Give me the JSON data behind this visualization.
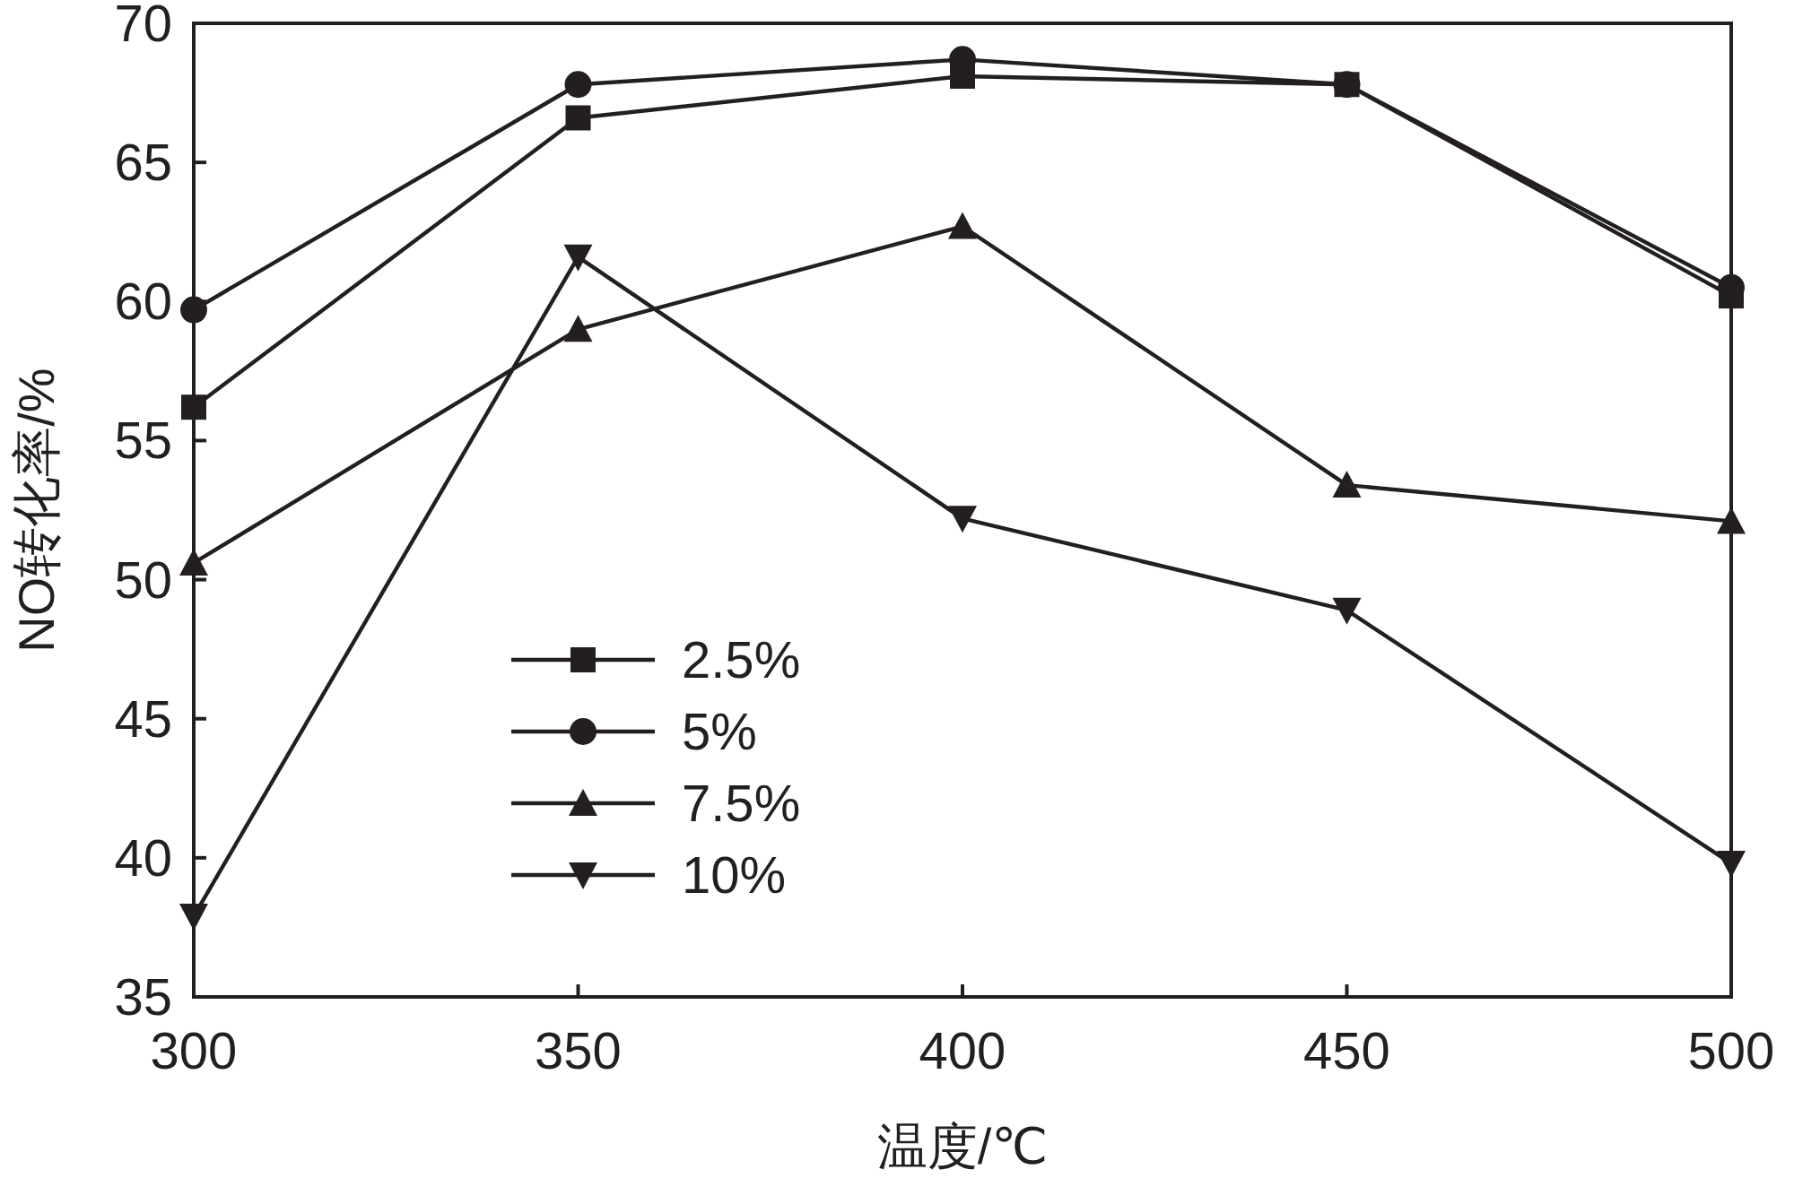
{
  "chart_data": {
    "type": "line",
    "xlabel": "温度/℃",
    "ylabel": "NO转化率/%",
    "x": [
      300,
      350,
      400,
      450,
      500
    ],
    "xlim": [
      300,
      500
    ],
    "xticks": [
      300,
      350,
      400,
      450,
      500
    ],
    "ylim": [
      35,
      70
    ],
    "yticks": [
      35,
      40,
      45,
      50,
      55,
      60,
      65,
      70
    ],
    "grid": false,
    "legend": "left",
    "line_style": "solid",
    "series": [
      {
        "name": "2.5%",
        "color": "#231f20",
        "marker": "square",
        "values": [
          56.2,
          66.6,
          68.1,
          67.8,
          60.2
        ]
      },
      {
        "name": "5%",
        "color": "#231f20",
        "marker": "circle",
        "values": [
          59.7,
          67.8,
          68.7,
          67.8,
          60.5
        ]
      },
      {
        "name": "7.5%",
        "color": "#231f20",
        "marker": "triangle",
        "values": [
          50.6,
          59.0,
          62.7,
          53.4,
          52.1
        ]
      },
      {
        "name": "10%",
        "color": "#231f20",
        "marker": "triangle_down",
        "values": [
          37.9,
          61.6,
          52.2,
          48.9,
          39.8
        ]
      }
    ]
  }
}
